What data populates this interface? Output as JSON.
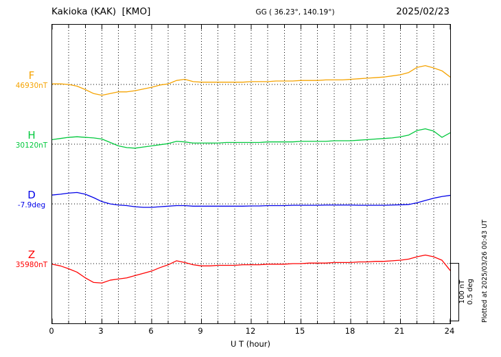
{
  "header": {
    "title": "Kakioka (KAK)  [KMO]",
    "coordinates": "GG ( 36.23°, 140.19°)",
    "date": "2025/02/23"
  },
  "x_axis": {
    "label": "U T (hour)",
    "ticks": [
      "0",
      "3",
      "6",
      "9",
      "12",
      "15",
      "18",
      "21",
      "24"
    ]
  },
  "scale_bar": {
    "line1": "100 nT",
    "line2": "0.5 deg"
  },
  "footer": {
    "plotted_at": "Plotted at 2025/03/26 00:43 UT"
  },
  "chart_data": {
    "type": "line",
    "title": "Kakioka (KAK) [KMO] magnetogram 2025/02/23",
    "xlabel": "U T (hour)",
    "x_range": [
      0,
      24
    ],
    "x_tick_values": [
      0,
      3,
      6,
      9,
      12,
      15,
      18,
      21,
      24
    ],
    "grid": "dotted vertical line every hour; dotted horizontal baseline per channel",
    "legend_position": "left margin channel labels",
    "scale": {
      "nT_per_division": 100,
      "deg_per_division": 0.5
    },
    "x_hours": [
      0,
      0.5,
      1,
      1.5,
      2,
      2.5,
      3,
      3.5,
      4,
      4.5,
      5,
      5.5,
      6,
      6.5,
      7,
      7.5,
      8,
      8.5,
      9,
      9.5,
      10,
      10.5,
      11,
      11.5,
      12,
      12.5,
      13,
      13.5,
      14,
      14.5,
      15,
      15.5,
      16,
      16.5,
      17,
      17.5,
      18,
      18.5,
      19,
      19.5,
      20,
      20.5,
      21,
      21.5,
      22,
      22.5,
      23,
      23.5,
      24
    ],
    "series": [
      {
        "name": "F",
        "unit": "nT",
        "baseline_value": 46930,
        "value_label": "46930nT",
        "color": "#f5a300",
        "units_per_division": 100,
        "baseline_frac": 0.2,
        "offsets": [
          1,
          1,
          0,
          -3,
          -9,
          -16,
          -19,
          -16,
          -13,
          -13,
          -11,
          -8,
          -5,
          -1,
          1,
          7,
          9,
          5,
          4,
          4,
          4,
          4,
          4,
          4,
          5,
          5,
          5,
          6,
          6,
          6,
          7,
          7,
          7,
          8,
          8,
          8,
          9,
          10,
          11,
          12,
          13,
          15,
          17,
          21,
          30,
          33,
          29,
          24,
          13
        ]
      },
      {
        "name": "H",
        "unit": "nT",
        "baseline_value": 30120,
        "value_label": "30120nT",
        "color": "#00c83c",
        "units_per_division": 100,
        "baseline_frac": 0.4,
        "offsets": [
          8,
          10,
          12,
          13,
          12,
          11,
          9,
          3,
          -3,
          -6,
          -7,
          -5,
          -3,
          -1,
          1,
          5,
          4,
          2,
          2,
          2,
          2,
          3,
          3,
          3,
          3,
          3,
          4,
          4,
          4,
          4,
          5,
          5,
          5,
          5,
          6,
          6,
          6,
          7,
          8,
          9,
          10,
          11,
          13,
          16,
          24,
          27,
          23,
          12,
          20
        ]
      },
      {
        "name": "D",
        "unit": "deg",
        "baseline_value": -7.9,
        "value_label": "-7.9deg",
        "color": "#0000e8",
        "units_per_division": 0.5,
        "baseline_frac": 0.6,
        "offsets": [
          0.078,
          0.085,
          0.095,
          0.1,
          0.085,
          0.055,
          0.02,
          0,
          -0.01,
          -0.015,
          -0.025,
          -0.03,
          -0.03,
          -0.025,
          -0.02,
          -0.015,
          -0.015,
          -0.02,
          -0.02,
          -0.02,
          -0.02,
          -0.02,
          -0.02,
          -0.02,
          -0.018,
          -0.018,
          -0.015,
          -0.015,
          -0.015,
          -0.012,
          -0.012,
          -0.012,
          -0.012,
          -0.01,
          -0.01,
          -0.01,
          -0.01,
          -0.012,
          -0.012,
          -0.012,
          -0.012,
          -0.01,
          -0.008,
          -0.005,
          0.01,
          0.03,
          0.05,
          0.065,
          0.075
        ]
      },
      {
        "name": "Z",
        "unit": "nT",
        "baseline_value": 35980,
        "value_label": "35980nT",
        "color": "#ff0000",
        "units_per_division": 100,
        "baseline_frac": 0.8,
        "offsets": [
          -1,
          -4,
          -9,
          -15,
          -25,
          -33,
          -34,
          -29,
          -27,
          -25,
          -21,
          -17,
          -13,
          -7,
          -2,
          5,
          2,
          -2,
          -4,
          -4,
          -3,
          -3,
          -3,
          -2,
          -2,
          -2,
          -1,
          -1,
          -1,
          0,
          0,
          1,
          1,
          1,
          2,
          2,
          2,
          3,
          3,
          4,
          4,
          5,
          6,
          8,
          12,
          15,
          12,
          6,
          -12
        ]
      }
    ]
  }
}
